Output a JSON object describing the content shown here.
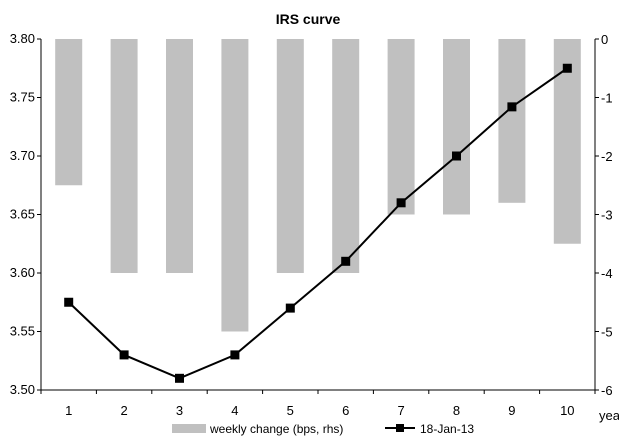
{
  "chart_data": {
    "type": "bar+line",
    "title": "IRS curve",
    "categories": [
      "1",
      "2",
      "3",
      "4",
      "5",
      "6",
      "7",
      "8",
      "9",
      "10"
    ],
    "x_unit_label": "years",
    "y_left": {
      "ylim": [
        3.5,
        3.8
      ],
      "ticks": [
        "3.50",
        "3.55",
        "3.60",
        "3.65",
        "3.70",
        "3.75",
        "3.80"
      ]
    },
    "y_right": {
      "ylim": [
        -6,
        0
      ],
      "ticks": [
        "0",
        "-1",
        "-2",
        "-3",
        "-4",
        "-5",
        "-6"
      ]
    },
    "series": [
      {
        "name": "weekly change (bps, rhs)",
        "type": "bar",
        "axis": "right",
        "values": [
          -2.5,
          -4,
          -4,
          -5,
          -4,
          -4,
          -3,
          -3,
          -2.8,
          -3.5
        ]
      },
      {
        "name": "18-Jan-13",
        "type": "line",
        "axis": "left",
        "values": [
          3.575,
          3.53,
          3.51,
          3.53,
          3.57,
          3.61,
          3.66,
          3.7,
          3.742,
          3.775
        ]
      }
    ],
    "colors": {
      "bars": "#c0c0c0",
      "line": "#000000",
      "axes": "#000000"
    },
    "grid": false,
    "legend_position": "bottom"
  }
}
